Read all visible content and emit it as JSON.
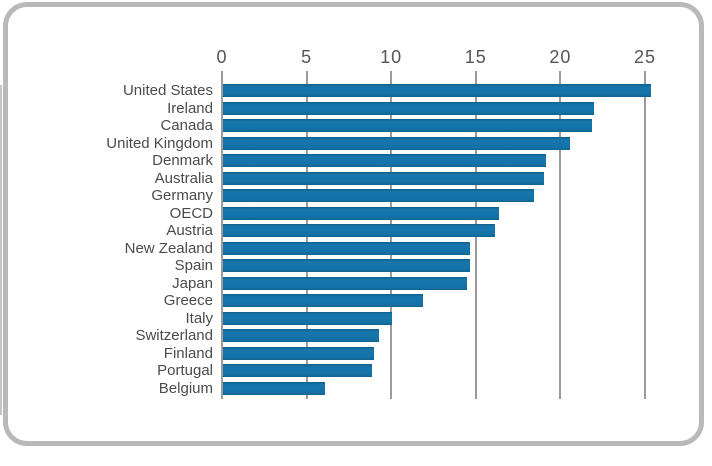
{
  "frame": {
    "background": "#ffffff",
    "border_color": "#b9b9b9"
  },
  "chart_data": {
    "type": "bar",
    "orientation": "horizontal",
    "title": "",
    "xlabel": "",
    "ylabel": "",
    "axis_position": "top",
    "grid": true,
    "legend": false,
    "xlim": [
      0,
      25
    ],
    "x_ticks": [
      0,
      5,
      10,
      15,
      20,
      25
    ],
    "categories": [
      "United States",
      "Ireland",
      "Canada",
      "United Kingdom",
      "Denmark",
      "Australia",
      "Germany",
      "OECD",
      "Austria",
      "New Zealand",
      "Spain",
      "Japan",
      "Greece",
      "Italy",
      "Switzerland",
      "Finland",
      "Portugal",
      "Belgium"
    ],
    "values": [
      25.3,
      21.9,
      21.8,
      20.5,
      19.1,
      19.0,
      18.4,
      16.3,
      16.1,
      14.6,
      14.6,
      14.4,
      11.8,
      10.0,
      9.2,
      8.9,
      8.8,
      6.0
    ],
    "bar_color": "#1372a6",
    "gridline_color": "#9b9b9b",
    "tick_label_color": "#555555",
    "category_label_color": "#4b4b4b"
  }
}
